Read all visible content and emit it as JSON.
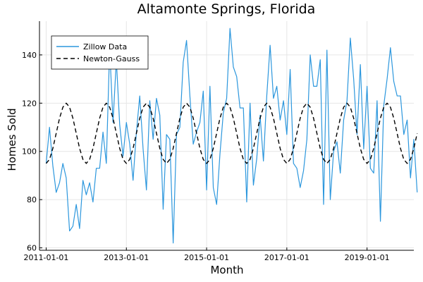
{
  "chart_data": {
    "type": "line",
    "title": "Altamonte Springs, Florida",
    "xlabel": "Month",
    "ylabel": "Homes Sold",
    "x_ticks": [
      "2011-01-01",
      "2013-01-01",
      "2015-01-01",
      "2017-01-01",
      "2019-01-01"
    ],
    "y_ticks": [
      60,
      80,
      100,
      120,
      140
    ],
    "xlim": [
      "2010-11-01",
      "2020-03-01"
    ],
    "ylim": [
      59,
      154
    ],
    "grid": true,
    "legend_position": "top-left",
    "series": [
      {
        "name": "Zillow Data",
        "style": "solid",
        "color": "#2c97dd",
        "start": "2011-01-01",
        "frequency": "monthly",
        "values": [
          95,
          110,
          94,
          83,
          87,
          95,
          89,
          67,
          69,
          78,
          68,
          88,
          82,
          87,
          79,
          93,
          93,
          108,
          95,
          143,
          112,
          138,
          111,
          98,
          112,
          103,
          88,
          108,
          123,
          101,
          84,
          121,
          105,
          122,
          115,
          76,
          107,
          105,
          62,
          107,
          110,
          137,
          146,
          123,
          103,
          108,
          112,
          125,
          84,
          127,
          85,
          78,
          99,
          116,
          122,
          151,
          135,
          131,
          118,
          118,
          79,
          120,
          86,
          97,
          115,
          96,
          123,
          144,
          122,
          127,
          113,
          121,
          107,
          134,
          95,
          93,
          85,
          92,
          105,
          140,
          127,
          127,
          138,
          78,
          142,
          80,
          100,
          104,
          91,
          113,
          121,
          147,
          130,
          107,
          136,
          101,
          127,
          93,
          91,
          121,
          71,
          119,
          130,
          143,
          129,
          123,
          123,
          107,
          113,
          89,
          105,
          83
        ]
      },
      {
        "name": "Newton-Gauss",
        "style": "dashed",
        "color": "#000000",
        "start": "2011-01-01",
        "frequency": "monthly",
        "model": "sinusoid",
        "mean": 107.5,
        "amplitude": 12.5,
        "period_months": 12,
        "peak_month_offset": 6,
        "months": 112
      }
    ]
  }
}
